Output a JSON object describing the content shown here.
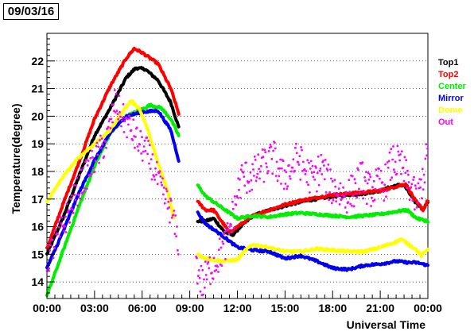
{
  "header": {
    "date_label": "09/03/16"
  },
  "chart_data": {
    "type": "scatter",
    "xlabel": "Universal Time",
    "ylabel": "Temperature(degree)",
    "xlim": [
      0,
      24
    ],
    "ylim": [
      13.4,
      23.0
    ],
    "x_unit": "hours",
    "x_ticks": [
      0,
      3,
      6,
      9,
      12,
      15,
      18,
      21,
      24
    ],
    "x_tick_labels": [
      "00:00",
      "03:00",
      "06:00",
      "09:00",
      "12:00",
      "15:00",
      "18:00",
      "21:00",
      "00:00"
    ],
    "y_ticks": [
      14,
      15,
      16,
      17,
      18,
      19,
      20,
      21,
      22
    ],
    "y_tick_labels": [
      "14",
      "15",
      "16",
      "17",
      "18",
      "19",
      "20",
      "21",
      "22"
    ],
    "grid": "horizontal dotted",
    "legend_position": "right",
    "series": [
      {
        "name": "Top1",
        "color": "#000000",
        "style": "line",
        "segments": [
          [
            [
              0.0,
              15.0
            ],
            [
              1.0,
              16.3
            ],
            [
              2.0,
              17.8
            ],
            [
              3.0,
              19.3
            ],
            [
              4.0,
              20.3
            ],
            [
              5.0,
              21.4
            ],
            [
              5.6,
              21.75
            ],
            [
              6.2,
              21.7
            ],
            [
              7.0,
              21.3
            ],
            [
              7.8,
              20.5
            ],
            [
              8.3,
              19.6
            ]
          ],
          [
            [
              9.5,
              16.2
            ],
            [
              10.0,
              16.2
            ],
            [
              10.5,
              16.3
            ],
            [
              11.2,
              15.8
            ],
            [
              11.7,
              15.7
            ],
            [
              12.2,
              16.0
            ],
            [
              13.0,
              16.4
            ],
            [
              14.0,
              16.6
            ],
            [
              15.0,
              16.75
            ],
            [
              16.0,
              16.9
            ],
            [
              17.0,
              17.0
            ],
            [
              18.0,
              17.1
            ],
            [
              19.0,
              17.15
            ],
            [
              20.0,
              17.2
            ],
            [
              21.0,
              17.3
            ],
            [
              22.0,
              17.5
            ],
            [
              22.5,
              17.5
            ],
            [
              23.2,
              16.9
            ],
            [
              23.7,
              16.65
            ],
            [
              24.0,
              16.9
            ]
          ]
        ]
      },
      {
        "name": "Top2",
        "color": "#ff0000",
        "style": "line",
        "segments": [
          [
            [
              0.0,
              15.2
            ],
            [
              1.0,
              16.8
            ],
            [
              2.0,
              18.3
            ],
            [
              3.0,
              19.9
            ],
            [
              4.0,
              21.1
            ],
            [
              5.0,
              22.1
            ],
            [
              5.5,
              22.45
            ],
            [
              6.0,
              22.3
            ],
            [
              7.0,
              21.9
            ],
            [
              7.8,
              21.0
            ],
            [
              8.3,
              20.1
            ]
          ],
          [
            [
              9.5,
              16.9
            ],
            [
              10.0,
              16.6
            ],
            [
              10.5,
              16.6
            ],
            [
              11.0,
              16.2
            ],
            [
              11.5,
              15.8
            ],
            [
              12.0,
              16.0
            ],
            [
              13.0,
              16.4
            ],
            [
              14.0,
              16.6
            ],
            [
              15.0,
              16.8
            ],
            [
              16.0,
              16.95
            ],
            [
              17.0,
              17.05
            ],
            [
              18.0,
              17.15
            ],
            [
              19.0,
              17.2
            ],
            [
              20.0,
              17.25
            ],
            [
              21.0,
              17.3
            ],
            [
              22.0,
              17.45
            ],
            [
              22.6,
              17.55
            ],
            [
              23.2,
              16.95
            ],
            [
              23.7,
              16.6
            ],
            [
              24.0,
              16.95
            ]
          ]
        ]
      },
      {
        "name": "Center",
        "color": "#00ee00",
        "style": "line",
        "segments": [
          [
            [
              0.0,
              13.5
            ],
            [
              1.0,
              15.1
            ],
            [
              2.0,
              16.7
            ],
            [
              3.0,
              18.2
            ],
            [
              4.0,
              19.4
            ],
            [
              5.0,
              20.0
            ],
            [
              6.0,
              20.25
            ],
            [
              6.5,
              20.4
            ],
            [
              7.2,
              20.3
            ],
            [
              7.8,
              19.9
            ],
            [
              8.3,
              19.3
            ]
          ],
          [
            [
              9.5,
              17.5
            ],
            [
              10.0,
              17.1
            ],
            [
              11.0,
              16.7
            ],
            [
              12.0,
              16.3
            ],
            [
              13.0,
              16.4
            ],
            [
              14.0,
              16.35
            ],
            [
              15.0,
              16.45
            ],
            [
              16.0,
              16.5
            ],
            [
              17.0,
              16.45
            ],
            [
              18.0,
              16.4
            ],
            [
              19.0,
              16.35
            ],
            [
              20.0,
              16.4
            ],
            [
              21.0,
              16.45
            ],
            [
              22.0,
              16.55
            ],
            [
              22.7,
              16.6
            ],
            [
              23.3,
              16.3
            ],
            [
              24.0,
              16.2
            ]
          ]
        ]
      },
      {
        "name": "Mirror",
        "color": "#0000ee",
        "style": "line",
        "segments": [
          [
            [
              0.0,
              14.5
            ],
            [
              1.0,
              15.8
            ],
            [
              2.0,
              17.2
            ],
            [
              3.0,
              18.4
            ],
            [
              4.0,
              19.4
            ],
            [
              5.0,
              20.0
            ],
            [
              6.0,
              20.15
            ],
            [
              7.0,
              20.2
            ],
            [
              7.8,
              19.5
            ],
            [
              8.3,
              18.4
            ]
          ],
          [
            [
              9.5,
              16.5
            ],
            [
              10.0,
              16.1
            ],
            [
              11.0,
              15.7
            ],
            [
              12.0,
              15.25
            ],
            [
              13.0,
              15.15
            ],
            [
              14.0,
              15.1
            ],
            [
              15.0,
              14.85
            ],
            [
              16.0,
              14.95
            ],
            [
              17.0,
              14.75
            ],
            [
              18.0,
              14.5
            ],
            [
              19.0,
              14.45
            ],
            [
              20.0,
              14.6
            ],
            [
              21.0,
              14.65
            ],
            [
              22.0,
              14.75
            ],
            [
              22.8,
              14.7
            ],
            [
              23.3,
              14.7
            ],
            [
              24.0,
              14.6
            ]
          ]
        ]
      },
      {
        "name": "Dome",
        "color": "#ffff00",
        "style": "line",
        "segments": [
          [
            [
              0.0,
              16.9
            ],
            [
              1.0,
              17.8
            ],
            [
              2.0,
              18.5
            ],
            [
              3.0,
              19.0
            ],
            [
              4.0,
              19.5
            ],
            [
              4.8,
              20.2
            ],
            [
              5.3,
              20.55
            ],
            [
              5.8,
              20.3
            ],
            [
              6.3,
              19.6
            ],
            [
              7.0,
              18.3
            ],
            [
              7.6,
              17.3
            ],
            [
              8.0,
              16.3
            ]
          ],
          [
            [
              9.5,
              15.0
            ],
            [
              10.0,
              14.85
            ],
            [
              11.0,
              14.75
            ],
            [
              12.0,
              14.8
            ],
            [
              12.5,
              15.15
            ],
            [
              13.0,
              15.35
            ],
            [
              14.0,
              15.25
            ],
            [
              15.0,
              15.1
            ],
            [
              16.0,
              15.1
            ],
            [
              17.0,
              15.2
            ],
            [
              18.0,
              15.15
            ],
            [
              19.0,
              15.1
            ],
            [
              20.0,
              15.1
            ],
            [
              21.0,
              15.25
            ],
            [
              22.0,
              15.45
            ],
            [
              22.3,
              15.55
            ],
            [
              23.2,
              15.2
            ],
            [
              23.6,
              14.95
            ],
            [
              24.0,
              15.2
            ]
          ]
        ]
      },
      {
        "name": "Out",
        "color": "#ff00ff",
        "style": "points",
        "segments": [
          [
            [
              0.0,
              14.8
            ],
            [
              1.0,
              16.0
            ],
            [
              2.0,
              17.4
            ],
            [
              3.0,
              18.4
            ],
            [
              3.8,
              19.2
            ],
            [
              4.3,
              20.5
            ],
            [
              4.8,
              19.9
            ],
            [
              5.3,
              19.5
            ],
            [
              5.8,
              19.0
            ],
            [
              6.3,
              18.7
            ],
            [
              6.8,
              18.0
            ],
            [
              7.3,
              17.2
            ],
            [
              7.8,
              16.6
            ],
            [
              8.3,
              15.4
            ]
          ],
          [
            [
              9.4,
              14.6
            ],
            [
              9.8,
              13.9
            ],
            [
              10.3,
              14.5
            ],
            [
              10.8,
              14.9
            ],
            [
              11.3,
              15.4
            ],
            [
              11.8,
              16.6
            ],
            [
              12.0,
              17.2
            ],
            [
              12.3,
              17.8
            ],
            [
              12.8,
              17.8
            ],
            [
              13.3,
              18.0
            ],
            [
              13.8,
              18.3
            ],
            [
              14.3,
              18.5
            ],
            [
              14.8,
              17.8
            ],
            [
              15.3,
              18.0
            ],
            [
              15.8,
              18.5
            ],
            [
              16.3,
              18.0
            ],
            [
              16.8,
              17.7
            ],
            [
              17.3,
              18.2
            ],
            [
              17.8,
              17.5
            ],
            [
              18.3,
              17.3
            ],
            [
              18.8,
              17.1
            ],
            [
              19.3,
              17.3
            ],
            [
              19.8,
              17.8
            ],
            [
              20.3,
              17.3
            ],
            [
              20.8,
              17.5
            ],
            [
              21.3,
              17.6
            ],
            [
              21.8,
              18.4
            ],
            [
              22.3,
              18.2
            ],
            [
              22.8,
              17.6
            ],
            [
              23.3,
              16.9
            ],
            [
              23.7,
              17.8
            ],
            [
              24.0,
              18.7
            ]
          ]
        ]
      }
    ]
  }
}
